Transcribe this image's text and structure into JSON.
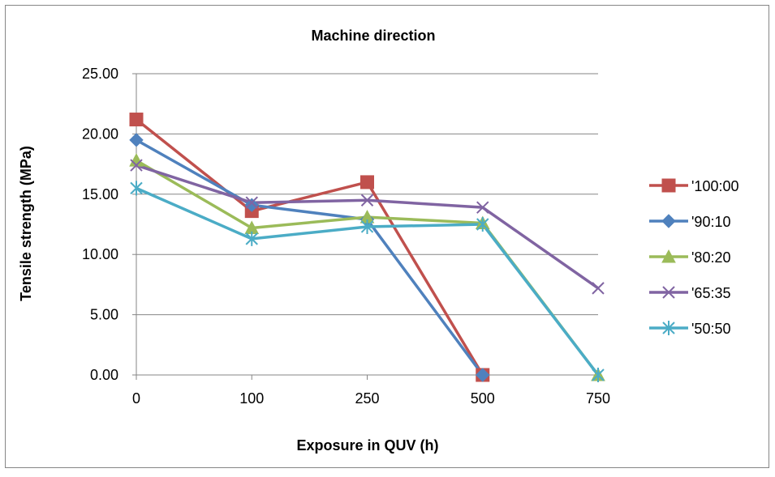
{
  "chart_data": {
    "type": "line",
    "title": "Machine direction",
    "xlabel": "Exposure in QUV (h)",
    "ylabel": "Tensile strength (MPa)",
    "categories": [
      "0",
      "100",
      "250",
      "500",
      "750"
    ],
    "ylim": [
      0,
      25
    ],
    "yticks": [
      "0.00",
      "5.00",
      "10.00",
      "15.00",
      "20.00",
      "25.00"
    ],
    "grid": true,
    "legend_position": "right",
    "series": [
      {
        "name": "'100:00",
        "color": "#C0504D",
        "marker": "square",
        "values": [
          21.2,
          13.6,
          16.0,
          0.0,
          null
        ]
      },
      {
        "name": "'90:10",
        "color": "#4F81BD",
        "marker": "diamond",
        "values": [
          19.5,
          14.1,
          12.9,
          0.0,
          null
        ]
      },
      {
        "name": "'80:20",
        "color": "#9BBB59",
        "marker": "triangle",
        "values": [
          17.8,
          12.2,
          13.1,
          12.6,
          0.0
        ]
      },
      {
        "name": "'65:35",
        "color": "#8064A2",
        "marker": "x",
        "values": [
          17.4,
          14.3,
          14.5,
          13.9,
          7.2
        ]
      },
      {
        "name": "'50:50",
        "color": "#4BACC6",
        "marker": "star",
        "values": [
          15.5,
          11.3,
          12.3,
          12.5,
          0.0
        ]
      }
    ]
  }
}
